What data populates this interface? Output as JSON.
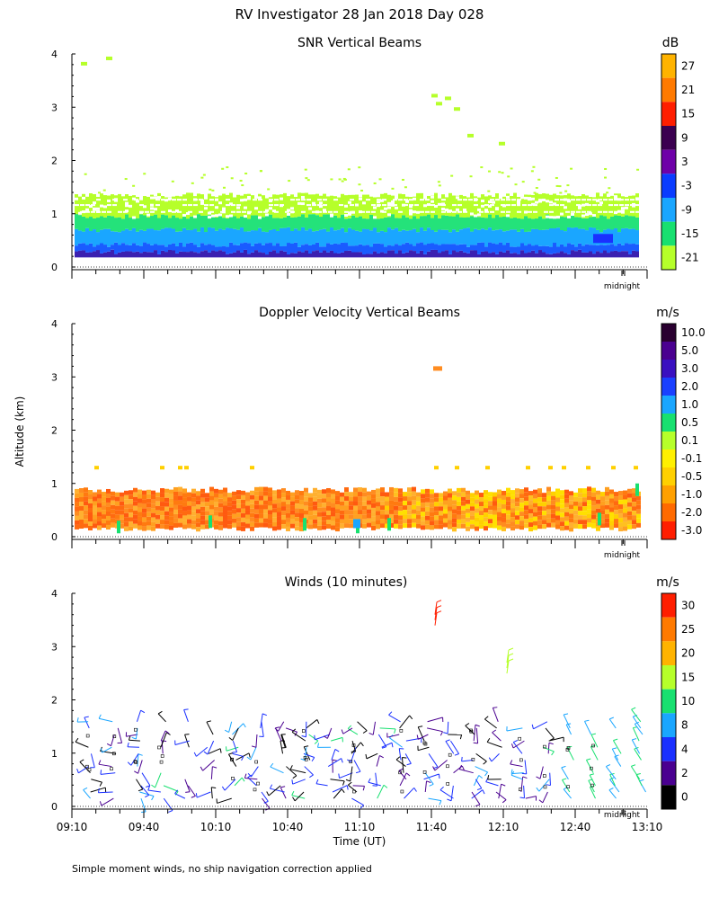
{
  "page": {
    "title": "RV Investigator  28 Jan 2018 Day 028",
    "y_axis_label": "Altitude (km)",
    "x_axis_label": "Time (UT)",
    "footer": "Simple moment winds, no ship navigation correction applied",
    "midnight_label": "midnight"
  },
  "chart_data": [
    {
      "type": "heatmap",
      "id": "snr",
      "title": "SNR Vertical Beams",
      "units": "dB",
      "xlabel": "Time (UT)",
      "ylabel": "Altitude (km)",
      "xlim": [
        "09:10",
        "13:10"
      ],
      "ylim": [
        0,
        4
      ],
      "yticks": [
        "0",
        "1",
        "2",
        "3",
        "4"
      ],
      "colorbar": {
        "labels": [
          "27",
          "21",
          "15",
          "9",
          "3",
          "-3",
          "-9",
          "-15",
          "-21"
        ],
        "colors": [
          "#ffb300",
          "#ff7a00",
          "#ff1e00",
          "#3b0050",
          "#6e00a8",
          "#0a3cff",
          "#1aa6ff",
          "#18e070",
          "#b6ff2a"
        ]
      },
      "layers": [
        {
          "alt_top": 0.28,
          "value": 3,
          "color": "#3b20b0"
        },
        {
          "alt_top": 0.42,
          "value": -3,
          "color": "#1a5cff"
        },
        {
          "alt_top": 0.7,
          "value": -9,
          "color": "#1aa6ff"
        },
        {
          "alt_top": 0.95,
          "value": -15,
          "color": "#24e27a"
        },
        {
          "alt_top": 1.35,
          "value": -21,
          "color": "#b6ff2a"
        }
      ]
    },
    {
      "type": "heatmap",
      "id": "doppler",
      "title": "Doppler Velocity Vertical Beams",
      "units": "m/s",
      "xlabel": "Time (UT)",
      "ylabel": "Altitude (km)",
      "xlim": [
        "09:10",
        "13:10"
      ],
      "ylim": [
        0,
        4
      ],
      "yticks": [
        "0",
        "1",
        "2",
        "3",
        "4"
      ],
      "colorbar": {
        "labels": [
          "10.0",
          "5.0",
          "3.0",
          "2.0",
          "1.0",
          "0.5",
          "0.1",
          "-0.1",
          "-0.5",
          "-1.0",
          "-2.0",
          "-3.0"
        ],
        "colors": [
          "#2a0030",
          "#4a0090",
          "#3a10c0",
          "#1a40ff",
          "#1aa6ff",
          "#18e070",
          "#b6ff2a",
          "#fff000",
          "#ffd000",
          "#ffa000",
          "#ff6a00",
          "#ff1e00"
        ]
      },
      "layers": [
        {
          "alt_top": 0.88,
          "value": -1.0,
          "color": "#ff7a10"
        }
      ]
    },
    {
      "type": "wind_barbs",
      "id": "winds",
      "title": "Winds (10 minutes)",
      "units": "m/s",
      "xlabel": "Time (UT)",
      "ylabel": "Altitude (km)",
      "xlim": [
        "09:10",
        "13:10"
      ],
      "ylim": [
        0,
        4
      ],
      "yticks": [
        "0",
        "1",
        "2",
        "3",
        "4"
      ],
      "xticks": [
        "09:10",
        "09:40",
        "10:10",
        "10:40",
        "11:10",
        "11:40",
        "12:10",
        "12:40",
        "13:10"
      ],
      "colorbar": {
        "labels": [
          "30",
          "25",
          "20",
          "15",
          "10",
          "8",
          "4",
          "2",
          "0"
        ],
        "colors": [
          "#ff1e00",
          "#ff7a00",
          "#ffb300",
          "#b6ff2a",
          "#18e070",
          "#1aa6ff",
          "#1a30ff",
          "#4a0090",
          "#000000"
        ]
      },
      "max_alt_km": 1.6,
      "high_barbs": [
        {
          "time_min": 150,
          "alt": 3.6,
          "speed": 30
        },
        {
          "time_min": 180,
          "alt": 2.7,
          "speed": 15
        }
      ]
    }
  ]
}
